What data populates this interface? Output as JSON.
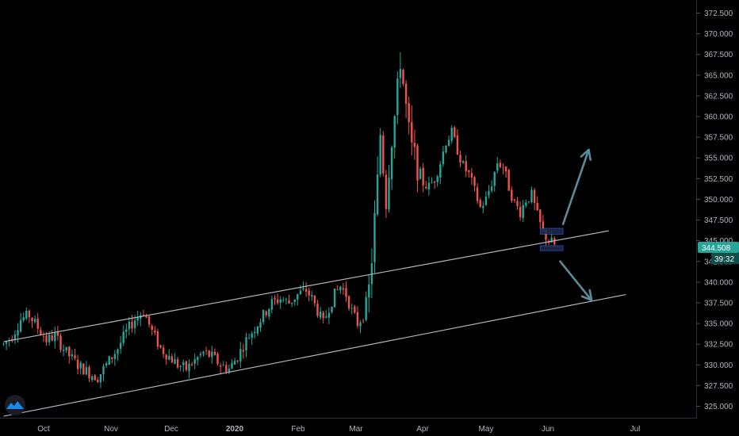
{
  "chart_data": {
    "type": "candlestick",
    "ylim": [
      323.5,
      374.0
    ],
    "y_ticks": [
      325,
      327.5,
      330,
      332.5,
      335,
      337.5,
      340,
      342.5,
      345,
      347.5,
      350,
      352.5,
      355,
      357.5,
      360,
      362.5,
      365,
      367.5,
      370,
      372.5
    ],
    "y_tick_labels": [
      "325.000",
      "327.500",
      "330.000",
      "332.500",
      "335.000",
      "337.500",
      "340.000",
      "342.500",
      "345.000",
      "347.500",
      "350.000",
      "352.500",
      "355.000",
      "357.500",
      "360.000",
      "362.500",
      "365.000",
      "367.500",
      "370.000",
      "372.500"
    ],
    "x_ticks": [
      {
        "label": "Oct",
        "bold": false
      },
      {
        "label": "Nov",
        "bold": false
      },
      {
        "label": "Dec",
        "bold": false
      },
      {
        "label": "2020",
        "bold": true
      },
      {
        "label": "Feb",
        "bold": false
      },
      {
        "label": "Mar",
        "bold": false
      },
      {
        "label": "Apr",
        "bold": false
      },
      {
        "label": "May",
        "bold": false
      },
      {
        "label": "Jun",
        "bold": false
      },
      {
        "label": "Jul",
        "bold": false
      }
    ],
    "price_anchors": [
      [
        0,
        332.5
      ],
      [
        3,
        333.5
      ],
      [
        6,
        335.5
      ],
      [
        9,
        336.0
      ],
      [
        12,
        334.5
      ],
      [
        15,
        333.0
      ],
      [
        18,
        333.5
      ],
      [
        22,
        331.5
      ],
      [
        26,
        330.0
      ],
      [
        30,
        329.0
      ],
      [
        33,
        328.5
      ],
      [
        36,
        330.0
      ],
      [
        40,
        332.0
      ],
      [
        43,
        334.0
      ],
      [
        46,
        335.5
      ],
      [
        49,
        336.5
      ],
      [
        52,
        334.0
      ],
      [
        55,
        332.0
      ],
      [
        58,
        331.0
      ],
      [
        61,
        330.0
      ],
      [
        64,
        329.5
      ],
      [
        67,
        330.5
      ],
      [
        70,
        331.5
      ],
      [
        73,
        331.0
      ],
      [
        76,
        330.0
      ],
      [
        79,
        329.5
      ],
      [
        82,
        331.0
      ],
      [
        85,
        333.0
      ],
      [
        88,
        334.5
      ],
      [
        91,
        336.0
      ],
      [
        94,
        337.5
      ],
      [
        97,
        338.0
      ],
      [
        100,
        337.5
      ],
      [
        103,
        338.5
      ],
      [
        106,
        339.0
      ],
      [
        108,
        338.0
      ],
      [
        110,
        336.5
      ],
      [
        112,
        335.0
      ],
      [
        114,
        337.0
      ],
      [
        116,
        338.5
      ],
      [
        118,
        339.5
      ],
      [
        120,
        338.5
      ],
      [
        122,
        336.5
      ],
      [
        124,
        335.0
      ],
      [
        126,
        336.0
      ],
      [
        128,
        339.0
      ],
      [
        129,
        343.0
      ],
      [
        130,
        347.5
      ],
      [
        131,
        352.0
      ],
      [
        132,
        358.0
      ],
      [
        133,
        354.0
      ],
      [
        134,
        350.0
      ],
      [
        135,
        354.0
      ],
      [
        136,
        357.5
      ],
      [
        137,
        360.0
      ],
      [
        138,
        363.0
      ],
      [
        139,
        367.0
      ],
      [
        140,
        364.0
      ],
      [
        141,
        361.0
      ],
      [
        142,
        358.0
      ],
      [
        143,
        356.0
      ],
      [
        145,
        354.0
      ],
      [
        147,
        352.0
      ],
      [
        149,
        351.5
      ],
      [
        151,
        352.5
      ],
      [
        153,
        354.5
      ],
      [
        155,
        357.0
      ],
      [
        157,
        358.0
      ],
      [
        159,
        356.0
      ],
      [
        161,
        354.0
      ],
      [
        163,
        353.0
      ],
      [
        165,
        351.0
      ],
      [
        167,
        349.0
      ],
      [
        169,
        350.0
      ],
      [
        171,
        352.0
      ],
      [
        173,
        354.5
      ],
      [
        175,
        354.0
      ],
      [
        177,
        351.5
      ],
      [
        179,
        349.5
      ],
      [
        181,
        348.5
      ],
      [
        183,
        350.0
      ],
      [
        185,
        350.5
      ],
      [
        187,
        348.0
      ],
      [
        189,
        346.0
      ],
      [
        191,
        345.0
      ],
      [
        193,
        344.5
      ]
    ],
    "channel_upper": [
      [
        0,
        332.8
      ],
      [
        212,
        346.2
      ]
    ],
    "channel_lower": [
      [
        0,
        323.8
      ],
      [
        218,
        338.5
      ]
    ],
    "rectangles": [
      {
        "x0": 188,
        "x1": 196,
        "y0": 345.8,
        "y1": 346.5
      },
      {
        "x0": 188,
        "x1": 196,
        "y0": 343.8,
        "y1": 344.4
      }
    ],
    "arrows": [
      {
        "from": [
          196,
          347.0
        ],
        "to": [
          205,
          356.0
        ]
      },
      {
        "from": [
          195,
          342.5
        ],
        "to": [
          206,
          337.8
        ]
      }
    ],
    "last_price": "344.508",
    "countdown": "39:32",
    "colors": {
      "up": "#26a69a",
      "down": "#ef5350",
      "channel": "#b2b5be",
      "arrow": "#5d8a99",
      "rect_fill": "#1e2a4a",
      "rect_stroke": "#2962ff",
      "badge": "#26a69a",
      "badge_secondary": "#0f4d4a",
      "logo": "#1e88e5"
    }
  }
}
